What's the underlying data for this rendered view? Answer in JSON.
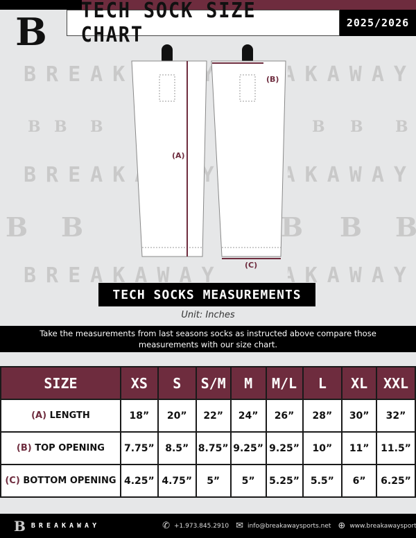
{
  "header": {
    "logo": "B",
    "title": "TECH SOCK SIZE CHART",
    "year": "2025/2026"
  },
  "watermark": {
    "text": "BREAKAWAY",
    "logo": "B"
  },
  "diagram": {
    "label_a": "(A)",
    "label_b": "(B)",
    "label_c": "(C)"
  },
  "measurements_title": "TECH SOCKS MEASUREMENTS",
  "unit": "Unit: Inches",
  "instructions": "Take the measurements from last seasons socks as instructed above compare those measurements  with our size chart.",
  "table": {
    "header": "SIZE",
    "sizes": [
      "XS",
      "S",
      "S/M",
      "M",
      "M/L",
      "L",
      "XL",
      "XXL"
    ],
    "rows": [
      {
        "letter": "(A)",
        "label": "LENGTH",
        "values": [
          "18”",
          "20”",
          "22”",
          "24”",
          "26”",
          "28”",
          "30”",
          "32”"
        ]
      },
      {
        "letter": "(B)",
        "label": "TOP OPENING",
        "values": [
          "7.75”",
          "8.5”",
          "8.75”",
          "9.25”",
          "9.25”",
          "10”",
          "11”",
          "11.5”"
        ]
      },
      {
        "letter": "(C)",
        "label": "BOTTOM OPENING",
        "values": [
          "4.25”",
          "4.75”",
          "5”",
          "5”",
          "5.25”",
          "5.5”",
          "6”",
          "6.25”"
        ]
      }
    ]
  },
  "footer": {
    "logo": "B",
    "brand": "BREAKAWAY",
    "phone": "+1.973.845.2910",
    "email": "info@breakawaysports.net",
    "website": "www.breakawaysports.net",
    "phone_icon": "phone-icon",
    "email_icon": "envelope-icon",
    "web_icon": "globe-icon"
  },
  "colors": {
    "maroon": "#6e2c3e",
    "black": "#000000",
    "background": "#e6e7e8"
  }
}
